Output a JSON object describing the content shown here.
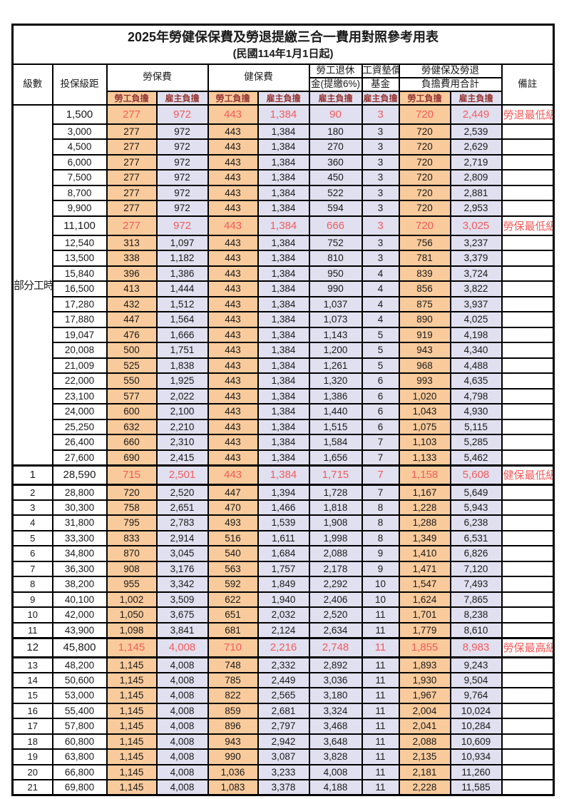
{
  "title": "2025年勞健保保費及勞退提繳三合一費用對照參考用表",
  "subtitle": "(民國114年1月1日起)",
  "header": {
    "level": "級數",
    "bracket": "投保級距",
    "labor": "勞保費",
    "health": "健保費",
    "pension_line1": "勞工退休",
    "pension_line2": "金(提繳6%)",
    "fund_line1": "工資墊償",
    "fund_line2": "基金",
    "total_line1": "勞健保及勞退",
    "total_line2": "負擔費用合計",
    "remark": "備註",
    "worker": "勞工負擔",
    "employer": "雇主負擔"
  },
  "part_time_label": "部分工時",
  "part_time_rowspan": 23,
  "colors": {
    "worker_bg": "#f9cb9c",
    "employer_bg": "#e0e0f0",
    "subheader_text": "#963634",
    "highlight_text": "#f45b5b",
    "border": "#000000"
  },
  "chart_data": {
    "type": "table",
    "title": "2025年勞健保保費及勞退提繳三合一費用對照參考用表 (民國114年1月1日起)",
    "columns": [
      "級數",
      "投保級距",
      "勞保費-勞工負擔",
      "勞保費-雇主負擔",
      "健保費-勞工負擔",
      "健保費-雇主負擔",
      "勞工退休金(提繳6%)-雇主負擔",
      "工資墊償基金-雇主負擔",
      "合計-勞工負擔",
      "合計-雇主負擔",
      "備註"
    ]
  },
  "rows": [
    {
      "level": "",
      "bracket": "1,500",
      "values": [
        "277",
        "972",
        "443",
        "1,384",
        "90",
        "3",
        "720",
        "2,449"
      ],
      "remark": "勞退最低級距",
      "highlight": true,
      "thick": false
    },
    {
      "level": "",
      "bracket": "3,000",
      "values": [
        "277",
        "972",
        "443",
        "1,384",
        "180",
        "3",
        "720",
        "2,539"
      ],
      "remark": "",
      "highlight": false,
      "thick": false
    },
    {
      "level": "",
      "bracket": "4,500",
      "values": [
        "277",
        "972",
        "443",
        "1,384",
        "270",
        "3",
        "720",
        "2,629"
      ],
      "remark": "",
      "highlight": false,
      "thick": false
    },
    {
      "level": "",
      "bracket": "6,000",
      "values": [
        "277",
        "972",
        "443",
        "1,384",
        "360",
        "3",
        "720",
        "2,719"
      ],
      "remark": "",
      "highlight": false,
      "thick": false
    },
    {
      "level": "",
      "bracket": "7,500",
      "values": [
        "277",
        "972",
        "443",
        "1,384",
        "450",
        "3",
        "720",
        "2,809"
      ],
      "remark": "",
      "highlight": false,
      "thick": false
    },
    {
      "level": "",
      "bracket": "8,700",
      "values": [
        "277",
        "972",
        "443",
        "1,384",
        "522",
        "3",
        "720",
        "2,881"
      ],
      "remark": "",
      "highlight": false,
      "thick": false
    },
    {
      "level": "",
      "bracket": "9,900",
      "values": [
        "277",
        "972",
        "443",
        "1,384",
        "594",
        "3",
        "720",
        "2,953"
      ],
      "remark": "",
      "highlight": false,
      "thick": false
    },
    {
      "level": "",
      "bracket": "11,100",
      "values": [
        "277",
        "972",
        "443",
        "1,384",
        "666",
        "3",
        "720",
        "3,025"
      ],
      "remark": "勞保最低級距",
      "highlight": true,
      "thick": false
    },
    {
      "level": "",
      "bracket": "12,540",
      "values": [
        "313",
        "1,097",
        "443",
        "1,384",
        "752",
        "3",
        "756",
        "3,237"
      ],
      "remark": "",
      "highlight": false,
      "thick": false
    },
    {
      "level": "",
      "bracket": "13,500",
      "values": [
        "338",
        "1,182",
        "443",
        "1,384",
        "810",
        "3",
        "781",
        "3,379"
      ],
      "remark": "",
      "highlight": false,
      "thick": false
    },
    {
      "level": "",
      "bracket": "15,840",
      "values": [
        "396",
        "1,386",
        "443",
        "1,384",
        "950",
        "4",
        "839",
        "3,724"
      ],
      "remark": "",
      "highlight": false,
      "thick": false
    },
    {
      "level": "",
      "bracket": "16,500",
      "values": [
        "413",
        "1,444",
        "443",
        "1,384",
        "990",
        "4",
        "856",
        "3,822"
      ],
      "remark": "",
      "highlight": false,
      "thick": false
    },
    {
      "level": "",
      "bracket": "17,280",
      "values": [
        "432",
        "1,512",
        "443",
        "1,384",
        "1,037",
        "4",
        "875",
        "3,937"
      ],
      "remark": "",
      "highlight": false,
      "thick": false
    },
    {
      "level": "",
      "bracket": "17,880",
      "values": [
        "447",
        "1,564",
        "443",
        "1,384",
        "1,073",
        "4",
        "890",
        "4,025"
      ],
      "remark": "",
      "highlight": false,
      "thick": false
    },
    {
      "level": "",
      "bracket": "19,047",
      "values": [
        "476",
        "1,666",
        "443",
        "1,384",
        "1,143",
        "5",
        "919",
        "4,198"
      ],
      "remark": "",
      "highlight": false,
      "thick": false
    },
    {
      "level": "",
      "bracket": "20,008",
      "values": [
        "500",
        "1,751",
        "443",
        "1,384",
        "1,200",
        "5",
        "943",
        "4,340"
      ],
      "remark": "",
      "highlight": false,
      "thick": false
    },
    {
      "level": "",
      "bracket": "21,009",
      "values": [
        "525",
        "1,838",
        "443",
        "1,384",
        "1,261",
        "5",
        "968",
        "4,488"
      ],
      "remark": "",
      "highlight": false,
      "thick": false
    },
    {
      "level": "",
      "bracket": "22,000",
      "values": [
        "550",
        "1,925",
        "443",
        "1,384",
        "1,320",
        "6",
        "993",
        "4,635"
      ],
      "remark": "",
      "highlight": false,
      "thick": false
    },
    {
      "level": "",
      "bracket": "23,100",
      "values": [
        "577",
        "2,022",
        "443",
        "1,384",
        "1,386",
        "6",
        "1,020",
        "4,798"
      ],
      "remark": "",
      "highlight": false,
      "thick": false
    },
    {
      "level": "",
      "bracket": "24,000",
      "values": [
        "600",
        "2,100",
        "443",
        "1,384",
        "1,440",
        "6",
        "1,043",
        "4,930"
      ],
      "remark": "",
      "highlight": false,
      "thick": false
    },
    {
      "level": "",
      "bracket": "25,250",
      "values": [
        "632",
        "2,210",
        "443",
        "1,384",
        "1,515",
        "6",
        "1,075",
        "5,115"
      ],
      "remark": "",
      "highlight": false,
      "thick": false
    },
    {
      "level": "",
      "bracket": "26,400",
      "values": [
        "660",
        "2,310",
        "443",
        "1,384",
        "1,584",
        "7",
        "1,103",
        "5,285"
      ],
      "remark": "",
      "highlight": false,
      "thick": false
    },
    {
      "level": "",
      "bracket": "27,600",
      "values": [
        "690",
        "2,415",
        "443",
        "1,384",
        "1,656",
        "7",
        "1,133",
        "5,462"
      ],
      "remark": "",
      "highlight": false,
      "thick": false
    },
    {
      "level": "1",
      "bracket": "28,590",
      "values": [
        "715",
        "2,501",
        "443",
        "1,384",
        "1,715",
        "7",
        "1,158",
        "5,608"
      ],
      "remark": "健保最低級距",
      "highlight": true,
      "thick": true
    },
    {
      "level": "2",
      "bracket": "28,800",
      "values": [
        "720",
        "2,520",
        "447",
        "1,394",
        "1,728",
        "7",
        "1,167",
        "5,649"
      ],
      "remark": "",
      "highlight": false,
      "thick": false
    },
    {
      "level": "3",
      "bracket": "30,300",
      "values": [
        "758",
        "2,651",
        "470",
        "1,466",
        "1,818",
        "8",
        "1,228",
        "5,943"
      ],
      "remark": "",
      "highlight": false,
      "thick": false
    },
    {
      "level": "4",
      "bracket": "31,800",
      "values": [
        "795",
        "2,783",
        "493",
        "1,539",
        "1,908",
        "8",
        "1,288",
        "6,238"
      ],
      "remark": "",
      "highlight": false,
      "thick": false
    },
    {
      "level": "5",
      "bracket": "33,300",
      "values": [
        "833",
        "2,914",
        "516",
        "1,611",
        "1,998",
        "8",
        "1,349",
        "6,531"
      ],
      "remark": "",
      "highlight": false,
      "thick": false
    },
    {
      "level": "6",
      "bracket": "34,800",
      "values": [
        "870",
        "3,045",
        "540",
        "1,684",
        "2,088",
        "9",
        "1,410",
        "6,826"
      ],
      "remark": "",
      "highlight": false,
      "thick": false
    },
    {
      "level": "7",
      "bracket": "36,300",
      "values": [
        "908",
        "3,176",
        "563",
        "1,757",
        "2,178",
        "9",
        "1,471",
        "7,120"
      ],
      "remark": "",
      "highlight": false,
      "thick": false
    },
    {
      "level": "8",
      "bracket": "38,200",
      "values": [
        "955",
        "3,342",
        "592",
        "1,849",
        "2,292",
        "10",
        "1,547",
        "7,493"
      ],
      "remark": "",
      "highlight": false,
      "thick": false
    },
    {
      "level": "9",
      "bracket": "40,100",
      "values": [
        "1,002",
        "3,509",
        "622",
        "1,940",
        "2,406",
        "10",
        "1,624",
        "7,865"
      ],
      "remark": "",
      "highlight": false,
      "thick": false
    },
    {
      "level": "10",
      "bracket": "42,000",
      "values": [
        "1,050",
        "3,675",
        "651",
        "2,032",
        "2,520",
        "11",
        "1,701",
        "8,238"
      ],
      "remark": "",
      "highlight": false,
      "thick": false
    },
    {
      "level": "11",
      "bracket": "43,900",
      "values": [
        "1,098",
        "3,841",
        "681",
        "2,124",
        "2,634",
        "11",
        "1,779",
        "8,610"
      ],
      "remark": "",
      "highlight": false,
      "thick": false
    },
    {
      "level": "12",
      "bracket": "45,800",
      "values": [
        "1,145",
        "4,008",
        "710",
        "2,216",
        "2,748",
        "11",
        "1,855",
        "8,983"
      ],
      "remark": "勞保最高級距",
      "highlight": true,
      "thick": true
    },
    {
      "level": "13",
      "bracket": "48,200",
      "values": [
        "1,145",
        "4,008",
        "748",
        "2,332",
        "2,892",
        "11",
        "1,893",
        "9,243"
      ],
      "remark": "",
      "highlight": false,
      "thick": false
    },
    {
      "level": "14",
      "bracket": "50,600",
      "values": [
        "1,145",
        "4,008",
        "785",
        "2,449",
        "3,036",
        "11",
        "1,930",
        "9,504"
      ],
      "remark": "",
      "highlight": false,
      "thick": false
    },
    {
      "level": "15",
      "bracket": "53,000",
      "values": [
        "1,145",
        "4,008",
        "822",
        "2,565",
        "3,180",
        "11",
        "1,967",
        "9,764"
      ],
      "remark": "",
      "highlight": false,
      "thick": false
    },
    {
      "level": "16",
      "bracket": "55,400",
      "values": [
        "1,145",
        "4,008",
        "859",
        "2,681",
        "3,324",
        "11",
        "2,004",
        "10,024"
      ],
      "remark": "",
      "highlight": false,
      "thick": false
    },
    {
      "level": "17",
      "bracket": "57,800",
      "values": [
        "1,145",
        "4,008",
        "896",
        "2,797",
        "3,468",
        "11",
        "2,041",
        "10,284"
      ],
      "remark": "",
      "highlight": false,
      "thick": false
    },
    {
      "level": "18",
      "bracket": "60,800",
      "values": [
        "1,145",
        "4,008",
        "943",
        "2,942",
        "3,648",
        "11",
        "2,088",
        "10,609"
      ],
      "remark": "",
      "highlight": false,
      "thick": false
    },
    {
      "level": "19",
      "bracket": "63,800",
      "values": [
        "1,145",
        "4,008",
        "990",
        "3,087",
        "3,828",
        "11",
        "2,135",
        "10,934"
      ],
      "remark": "",
      "highlight": false,
      "thick": false
    },
    {
      "level": "20",
      "bracket": "66,800",
      "values": [
        "1,145",
        "4,008",
        "1,036",
        "3,233",
        "4,008",
        "11",
        "2,181",
        "11,260"
      ],
      "remark": "",
      "highlight": false,
      "thick": false
    },
    {
      "level": "21",
      "bracket": "69,800",
      "values": [
        "1,145",
        "4,008",
        "1,083",
        "3,378",
        "4,188",
        "11",
        "2,228",
        "11,585"
      ],
      "remark": "",
      "highlight": false,
      "thick": false
    }
  ]
}
